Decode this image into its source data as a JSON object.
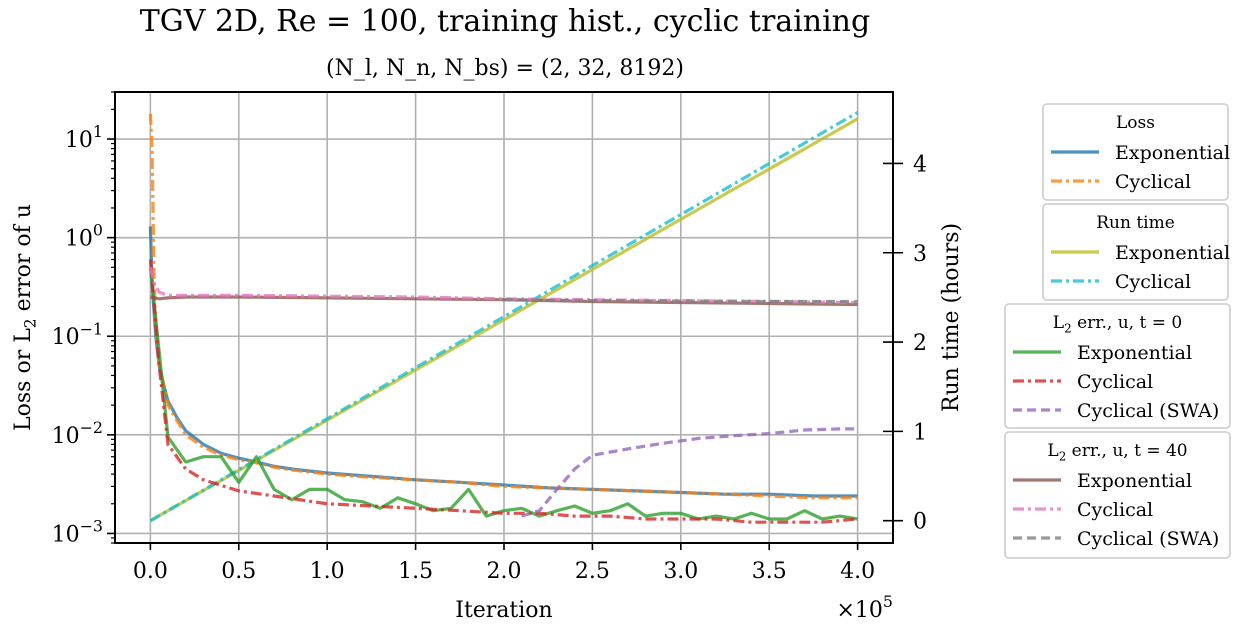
{
  "title": "TGV 2D, Re = 100, training hist., cyclic training",
  "subtitle": "(N_l, N_n, N_bs) = (2, 32, 8192)",
  "chart_data": {
    "type": "line",
    "xlabel": "Iteration",
    "x_multiplier": "×10^5",
    "ylabel_left": "Loss or L2 error of u",
    "ylabel_right": "Run time (hours)",
    "xlim": [
      -0.2,
      4.2
    ],
    "ylim_left": [
      0.0008,
      30
    ],
    "left_scale": "log",
    "ylim_right": [
      -0.25,
      4.8
    ],
    "x_ticks": [
      "0.0",
      "0.5",
      "1.0",
      "1.5",
      "2.0",
      "2.5",
      "3.0",
      "3.5",
      "4.0"
    ],
    "left_ticks": [
      {
        "value": 10,
        "label": "10^1"
      },
      {
        "value": 1,
        "label": "10^0"
      },
      {
        "value": 0.1,
        "label": "10^-1"
      },
      {
        "value": 0.01,
        "label": "10^-2"
      },
      {
        "value": 0.001,
        "label": "10^-3"
      }
    ],
    "right_ticks": [
      "0",
      "1",
      "2",
      "3",
      "4"
    ],
    "grid": true,
    "legend_placement": "outside right",
    "series": [
      {
        "group": "Loss",
        "name": "Exponential",
        "axis": "left",
        "color": "#1f77b4",
        "dash": "solid",
        "x": [
          0,
          0.01,
          0.03,
          0.05,
          0.08,
          0.1,
          0.15,
          0.2,
          0.3,
          0.4,
          0.5,
          0.6,
          0.7,
          0.8,
          0.9,
          1.0,
          1.25,
          1.5,
          1.75,
          2.0,
          2.25,
          2.5,
          2.75,
          3.0,
          3.25,
          3.5,
          3.75,
          4.0
        ],
        "y": [
          1.3,
          0.35,
          0.1,
          0.05,
          0.03,
          0.022,
          0.015,
          0.011,
          0.008,
          0.0065,
          0.0058,
          0.0053,
          0.0048,
          0.0045,
          0.0043,
          0.0041,
          0.0038,
          0.0035,
          0.0033,
          0.0031,
          0.0029,
          0.0028,
          0.0027,
          0.0026,
          0.0025,
          0.0025,
          0.0024,
          0.0024
        ]
      },
      {
        "group": "Loss",
        "name": "Cyclical",
        "axis": "left",
        "color": "#ff7f0e",
        "dash": "dashdot",
        "x": [
          0,
          0.01,
          0.02,
          0.03,
          0.05,
          0.08,
          0.1,
          0.15,
          0.2,
          0.3,
          0.4,
          0.5,
          0.6,
          0.7,
          0.8,
          0.9,
          1.0,
          1.25,
          1.5,
          1.75,
          2.0,
          2.25,
          2.5,
          2.75,
          3.0,
          3.25,
          3.5,
          3.75,
          4.0
        ],
        "y": [
          18,
          8,
          0.5,
          0.12,
          0.05,
          0.03,
          0.02,
          0.014,
          0.01,
          0.0075,
          0.0062,
          0.0056,
          0.0052,
          0.0047,
          0.0044,
          0.0042,
          0.004,
          0.0037,
          0.0035,
          0.0033,
          0.003,
          0.0029,
          0.0028,
          0.0027,
          0.0026,
          0.0025,
          0.0024,
          0.0023,
          0.0023
        ]
      },
      {
        "group": "Run time",
        "name": "Exponential",
        "axis": "right",
        "color": "#bcbd22",
        "dash": "solid",
        "x": [
          0,
          4
        ],
        "y": [
          0,
          4.5
        ]
      },
      {
        "group": "Run time",
        "name": "Cyclical",
        "axis": "right",
        "color": "#17becf",
        "dash": "dashdot",
        "x": [
          0,
          4
        ],
        "y": [
          0,
          4.57
        ]
      },
      {
        "group": "L2 err., u, t = 0",
        "name": "Exponential",
        "axis": "left",
        "color": "#2ca02c",
        "dash": "solid",
        "x": [
          0,
          0.1,
          0.2,
          0.3,
          0.4,
          0.5,
          0.6,
          0.7,
          0.8,
          0.9,
          1.0,
          1.1,
          1.2,
          1.3,
          1.4,
          1.5,
          1.6,
          1.7,
          1.8,
          1.9,
          2.0,
          2.1,
          2.2,
          2.3,
          2.4,
          2.5,
          2.6,
          2.7,
          2.8,
          2.9,
          3.0,
          3.1,
          3.2,
          3.3,
          3.4,
          3.5,
          3.6,
          3.7,
          3.8,
          3.9,
          4.0
        ],
        "y": [
          0.5,
          0.0095,
          0.0053,
          0.006,
          0.006,
          0.0033,
          0.006,
          0.0028,
          0.0022,
          0.0028,
          0.0028,
          0.0022,
          0.0021,
          0.0018,
          0.0023,
          0.002,
          0.0017,
          0.0018,
          0.0028,
          0.0015,
          0.0017,
          0.0018,
          0.0015,
          0.0017,
          0.0019,
          0.0016,
          0.0017,
          0.002,
          0.0015,
          0.0016,
          0.0016,
          0.0014,
          0.0015,
          0.0014,
          0.0016,
          0.0014,
          0.0014,
          0.0017,
          0.0014,
          0.0015,
          0.0014
        ]
      },
      {
        "group": "L2 err., u, t = 0",
        "name": "Cyclical",
        "axis": "left",
        "color": "#d62728",
        "dash": "dashdot",
        "x": [
          0,
          0.05,
          0.1,
          0.2,
          0.3,
          0.5,
          0.7,
          1.0,
          1.25,
          1.5,
          1.75,
          2.0,
          2.2,
          2.4,
          2.6,
          2.8,
          3.0,
          3.2,
          3.4,
          3.6,
          3.8,
          4.0
        ],
        "y": [
          0.6,
          0.05,
          0.008,
          0.0045,
          0.0035,
          0.0027,
          0.0024,
          0.002,
          0.0019,
          0.0018,
          0.0017,
          0.0016,
          0.0016,
          0.0015,
          0.0015,
          0.0014,
          0.0014,
          0.0014,
          0.0013,
          0.0013,
          0.0013,
          0.0014
        ]
      },
      {
        "group": "L2 err., u, t = 0",
        "name": "Cyclical (SWA)",
        "axis": "left",
        "color": "#9467bd",
        "dash": "dashed",
        "x": [
          2.1,
          2.2,
          2.3,
          2.4,
          2.5,
          2.7,
          2.9,
          3.1,
          3.3,
          3.5,
          3.7,
          3.9,
          4.0
        ],
        "y": [
          0.0015,
          0.0017,
          0.0028,
          0.0045,
          0.0062,
          0.0072,
          0.0082,
          0.0092,
          0.0098,
          0.0103,
          0.0112,
          0.0115,
          0.0115
        ]
      },
      {
        "group": "L2 err., u, t = 40",
        "name": "Exponential",
        "axis": "left",
        "color": "#8c564b",
        "dash": "solid",
        "x": [
          0,
          0.05,
          0.1,
          0.2,
          0.5,
          1.0,
          1.5,
          2.0,
          2.5,
          3.0,
          3.5,
          4.0
        ],
        "y": [
          0.25,
          0.24,
          0.245,
          0.25,
          0.25,
          0.245,
          0.24,
          0.235,
          0.225,
          0.22,
          0.215,
          0.21
        ]
      },
      {
        "group": "L2 err., u, t = 40",
        "name": "Cyclical",
        "axis": "left",
        "color": "#e377c2",
        "dash": "dashdot",
        "x": [
          0,
          0.02,
          0.05,
          0.1,
          0.2,
          0.5,
          1.0,
          1.5,
          2.0,
          2.5,
          3.0,
          3.5,
          4.0
        ],
        "y": [
          0.5,
          0.35,
          0.28,
          0.26,
          0.26,
          0.26,
          0.255,
          0.25,
          0.24,
          0.235,
          0.23,
          0.225,
          0.22
        ]
      },
      {
        "group": "L2 err., u, t = 40",
        "name": "Cyclical (SWA)",
        "axis": "left",
        "color": "#7f7f7f",
        "dash": "dashed",
        "x": [
          2.0,
          2.5,
          3.0,
          3.5,
          4.0
        ],
        "y": [
          0.235,
          0.23,
          0.228,
          0.225,
          0.225
        ]
      }
    ]
  },
  "legend": [
    {
      "title": "Loss",
      "entries": [
        {
          "label": "Exponential",
          "color": "#1f77b4",
          "dash": "solid"
        },
        {
          "label": "Cyclical",
          "color": "#ff7f0e",
          "dash": "dashdot"
        }
      ]
    },
    {
      "title": "Run time",
      "entries": [
        {
          "label": "Exponential",
          "color": "#bcbd22",
          "dash": "solid"
        },
        {
          "label": "Cyclical",
          "color": "#17becf",
          "dash": "dashdot"
        }
      ]
    },
    {
      "title": "L2 err., u, t = 0",
      "entries": [
        {
          "label": "Exponential",
          "color": "#2ca02c",
          "dash": "solid"
        },
        {
          "label": "Cyclical",
          "color": "#d62728",
          "dash": "dashdot"
        },
        {
          "label": "Cyclical (SWA)",
          "color": "#9467bd",
          "dash": "dashed"
        }
      ]
    },
    {
      "title": "L2 err., u, t = 40",
      "entries": [
        {
          "label": "Exponential",
          "color": "#8c564b",
          "dash": "solid"
        },
        {
          "label": "Cyclical",
          "color": "#e377c2",
          "dash": "dashdot"
        },
        {
          "label": "Cyclical (SWA)",
          "color": "#7f7f7f",
          "dash": "dashed"
        }
      ]
    }
  ]
}
